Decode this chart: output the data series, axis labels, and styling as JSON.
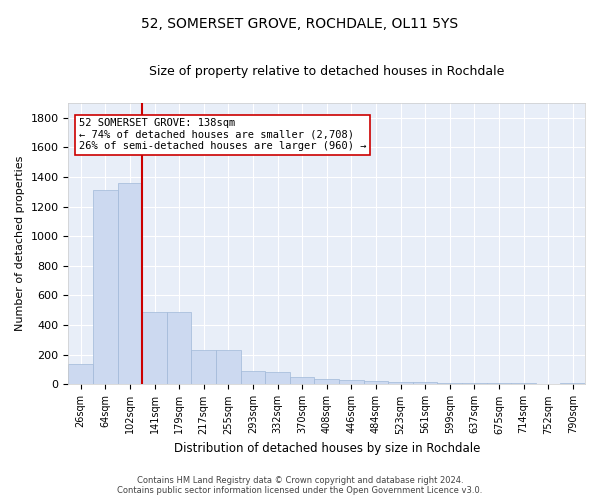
{
  "title": "52, SOMERSET GROVE, ROCHDALE, OL11 5YS",
  "subtitle": "Size of property relative to detached houses in Rochdale",
  "xlabel": "Distribution of detached houses by size in Rochdale",
  "ylabel": "Number of detached properties",
  "bin_labels": [
    "26sqm",
    "64sqm",
    "102sqm",
    "141sqm",
    "179sqm",
    "217sqm",
    "255sqm",
    "293sqm",
    "332sqm",
    "370sqm",
    "408sqm",
    "446sqm",
    "484sqm",
    "523sqm",
    "561sqm",
    "599sqm",
    "637sqm",
    "675sqm",
    "714sqm",
    "752sqm",
    "790sqm"
  ],
  "bar_values": [
    140,
    1310,
    1360,
    490,
    490,
    230,
    230,
    90,
    85,
    50,
    40,
    30,
    20,
    15,
    15,
    10,
    10,
    10,
    10,
    5,
    10
  ],
  "bar_color": "#ccd9f0",
  "bar_edge_color": "#a0b8d8",
  "red_line_x": 2.5,
  "property_line_label": "52 SOMERSET GROVE: 138sqm",
  "annotation_line1": "← 74% of detached houses are smaller (2,708)",
  "annotation_line2": "26% of semi-detached houses are larger (960) →",
  "red_line_color": "#cc0000",
  "ylim": [
    0,
    1900
  ],
  "yticks": [
    0,
    200,
    400,
    600,
    800,
    1000,
    1200,
    1400,
    1600,
    1800
  ],
  "background_color": "#e8eef8",
  "grid_color": "#ffffff",
  "footer_line1": "Contains HM Land Registry data © Crown copyright and database right 2024.",
  "footer_line2": "Contains public sector information licensed under the Open Government Licence v3.0."
}
